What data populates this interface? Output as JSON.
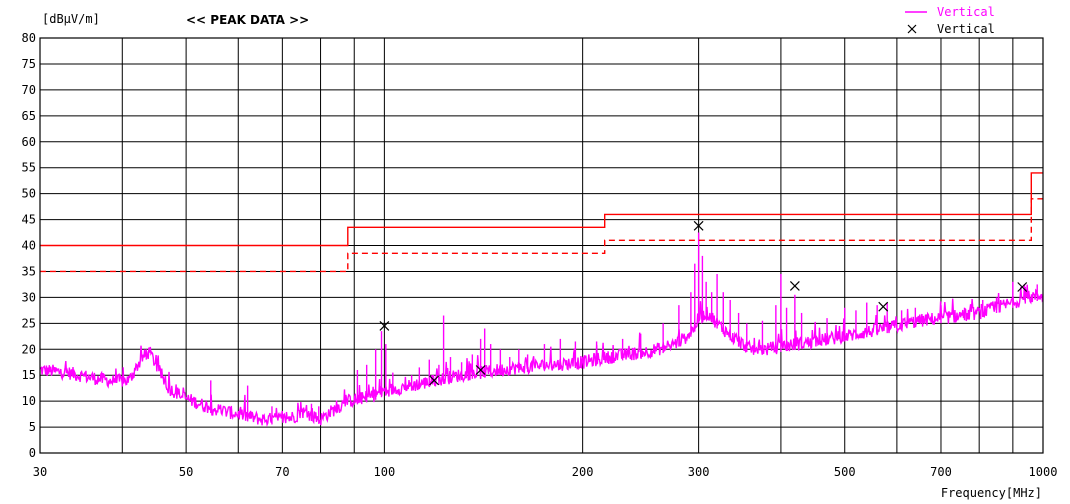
{
  "chart_data": {
    "type": "line",
    "title": "<< PEAK DATA >>",
    "ylabel": "[dBμV/m]",
    "xlabel": "Frequency[MHz]",
    "xscale": "log",
    "xlim": [
      30,
      1000
    ],
    "ylim": [
      0,
      80
    ],
    "yticks": [
      0,
      5,
      10,
      15,
      20,
      25,
      30,
      35,
      40,
      45,
      50,
      55,
      60,
      65,
      70,
      75,
      80
    ],
    "xtick_labels": [
      30,
      50,
      70,
      100,
      200,
      300,
      500,
      700,
      1000
    ],
    "grid": true,
    "legend_position": "top-right",
    "legend": [
      {
        "label": "Vertical",
        "marker": "line",
        "color": "#ff00ff"
      },
      {
        "label": "Vertical",
        "marker": "x",
        "color": "#000000"
      }
    ],
    "limits": [
      {
        "style": "solid",
        "color": "#ff0000",
        "steps": [
          [
            30,
            88,
            40
          ],
          [
            88,
            216,
            43.5
          ],
          [
            216,
            960,
            46
          ],
          [
            960,
            1000,
            54
          ]
        ]
      },
      {
        "style": "dashed",
        "color": "#ff0000",
        "steps": [
          [
            30,
            88,
            35
          ],
          [
            88,
            216,
            38.5
          ],
          [
            216,
            960,
            41
          ],
          [
            960,
            1000,
            49
          ]
        ]
      }
    ],
    "series": [
      {
        "name": "Vertical",
        "color": "#ff00ff",
        "x": [
          30,
          33,
          36,
          39,
          41,
          42,
          43,
          44,
          45,
          47,
          50,
          55,
          60,
          65,
          70,
          73,
          75,
          78,
          80,
          83,
          88,
          92,
          96,
          100,
          105,
          110,
          115,
          120,
          130,
          140,
          150,
          160,
          180,
          200,
          220,
          250,
          270,
          285,
          295,
          300,
          310,
          320,
          340,
          360,
          380,
          400,
          450,
          500,
          550,
          600,
          650,
          700,
          750,
          800,
          850,
          900,
          950,
          1000
        ],
        "y": [
          16,
          15.5,
          14.5,
          13.8,
          14,
          16.5,
          18.5,
          19.5,
          17,
          12.5,
          10.5,
          8.5,
          7.5,
          6.5,
          6.5,
          7,
          8,
          7,
          6.5,
          8,
          10,
          10.5,
          11,
          12,
          12.5,
          13,
          13.5,
          14,
          15,
          15.5,
          16,
          16.5,
          17,
          17.5,
          18.5,
          19.5,
          20.5,
          22,
          24,
          26,
          27,
          25,
          22,
          20,
          20,
          20.5,
          21.5,
          22.5,
          23.5,
          24.5,
          25.5,
          26,
          26.5,
          27,
          28,
          29,
          30,
          30.5
        ],
        "spikes": [
          [
            41.5,
            15.5
          ],
          [
            43.5,
            20
          ],
          [
            54.5,
            14
          ],
          [
            62,
            13
          ],
          [
            67.5,
            9
          ],
          [
            77.5,
            9.5
          ],
          [
            79.5,
            9
          ],
          [
            91,
            16
          ],
          [
            94,
            17
          ],
          [
            97,
            20
          ],
          [
            99,
            23.5
          ],
          [
            100.5,
            21
          ],
          [
            103,
            15.5
          ],
          [
            110,
            15
          ],
          [
            113,
            16.5
          ],
          [
            117,
            18
          ],
          [
            121,
            17
          ],
          [
            123,
            26.5
          ],
          [
            126,
            18.5
          ],
          [
            131,
            17.5
          ],
          [
            136,
            19
          ],
          [
            140,
            22
          ],
          [
            142,
            24
          ],
          [
            145,
            21
          ],
          [
            150,
            20
          ],
          [
            155,
            18.5
          ],
          [
            160,
            20
          ],
          [
            165,
            19
          ],
          [
            175,
            21
          ],
          [
            185,
            22
          ],
          [
            195,
            21.5
          ],
          [
            210,
            21.5
          ],
          [
            230,
            22
          ],
          [
            245,
            23
          ],
          [
            265,
            25
          ],
          [
            280,
            28.5
          ],
          [
            292,
            31
          ],
          [
            296,
            36.5
          ],
          [
            300,
            42.5
          ],
          [
            304,
            38
          ],
          [
            308,
            33
          ],
          [
            314,
            31
          ],
          [
            320,
            34.5
          ],
          [
            327,
            31
          ],
          [
            335,
            29.5
          ],
          [
            345,
            27
          ],
          [
            355,
            25
          ],
          [
            375,
            25.5
          ],
          [
            393,
            28.5
          ],
          [
            400,
            34.5
          ],
          [
            408,
            28
          ],
          [
            420,
            30.5
          ],
          [
            430,
            27
          ],
          [
            470,
            26
          ],
          [
            500,
            28
          ],
          [
            520,
            27.5
          ],
          [
            540,
            29
          ],
          [
            560,
            28.5
          ],
          [
            580,
            29
          ],
          [
            610,
            27.5
          ],
          [
            640,
            28
          ],
          [
            700,
            28.5
          ],
          [
            760,
            28
          ],
          [
            810,
            29.5
          ],
          [
            850,
            30
          ],
          [
            900,
            33
          ],
          [
            940,
            32
          ],
          [
            980,
            32.5
          ]
        ]
      },
      {
        "name": "Vertical",
        "type": "scatter",
        "marker": "x",
        "color": "#000000",
        "x": [
          100,
          119,
          140,
          300,
          420,
          572,
          930
        ],
        "y": [
          24.5,
          14,
          16,
          43.8,
          32.2,
          28.2,
          32
        ]
      }
    ]
  }
}
